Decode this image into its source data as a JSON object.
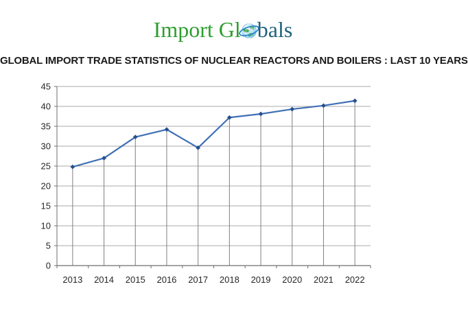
{
  "page": {
    "title": "GLOBAL IMPORT TRADE STATISTICS OF NUCLEAR REACTORS AND BOILERS : LAST 10 YEARS"
  },
  "logo": {
    "text_green": "Import Gl",
    "text_teal": "bals",
    "globe_icon": "globe-icon"
  },
  "colors": {
    "logo-green": "#2f9e2f",
    "logo-teal": "#20627c",
    "title-color": "#1a1a1a",
    "line-blue": "#3f6fb5",
    "marker-blue": "#264f8f",
    "gridline-gray": "#a8a8a8",
    "dropline-gray": "#7f7f7f",
    "axis-gray": "#6e6e6e",
    "tick-label": "#262626",
    "globe-water": "#8ed0f0",
    "globe-land": "#3aa13a",
    "globe-orbit": "#2a85c7"
  },
  "chart_data": {
    "type": "line",
    "title": "GLOBAL IMPORT TRADE STATISTICS OF NUCLEAR REACTORS AND BOILERS : LAST 10 YEARS",
    "categories": [
      "2013",
      "2014",
      "2015",
      "2016",
      "2017",
      "2018",
      "2019",
      "2020",
      "2021",
      "2022"
    ],
    "values": [
      24.8,
      27.0,
      32.3,
      34.2,
      29.6,
      37.2,
      38.1,
      39.3,
      40.2,
      41.4
    ],
    "xlabel": "",
    "ylabel": "",
    "ylim": [
      0,
      45
    ],
    "ytick_step": 5,
    "grid": true,
    "drop_lines": true,
    "legend": "none",
    "marker": "diamond"
  }
}
